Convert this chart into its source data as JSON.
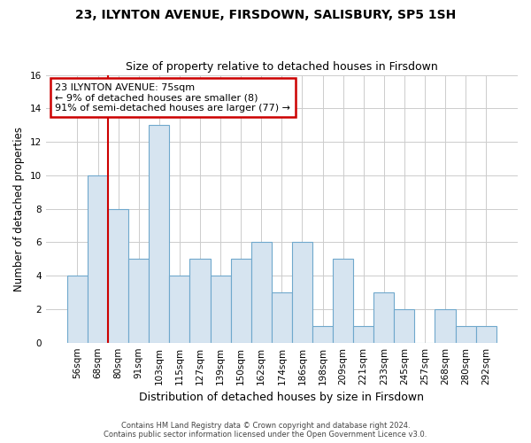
{
  "title": "23, ILYNTON AVENUE, FIRSDOWN, SALISBURY, SP5 1SH",
  "subtitle": "Size of property relative to detached houses in Firsdown",
  "xlabel": "Distribution of detached houses by size in Firsdown",
  "ylabel": "Number of detached properties",
  "categories": [
    "56sqm",
    "68sqm",
    "80sqm",
    "91sqm",
    "103sqm",
    "115sqm",
    "127sqm",
    "139sqm",
    "150sqm",
    "162sqm",
    "174sqm",
    "186sqm",
    "198sqm",
    "209sqm",
    "221sqm",
    "233sqm",
    "245sqm",
    "257sqm",
    "268sqm",
    "280sqm",
    "292sqm"
  ],
  "values": [
    4,
    10,
    8,
    5,
    13,
    4,
    5,
    4,
    5,
    6,
    3,
    6,
    1,
    5,
    1,
    3,
    2,
    0,
    2,
    1,
    1
  ],
  "bar_color": "#d6e4f0",
  "bar_edge_color": "#6fa8cc",
  "grid_color": "#cccccc",
  "annotation_text": "23 ILYNTON AVENUE: 75sqm\n← 9% of detached houses are smaller (8)\n91% of semi-detached houses are larger (77) →",
  "annotation_box_color": "#ffffff",
  "annotation_box_edge": "#cc0000",
  "vline_color": "#cc0000",
  "vline_x_index": 2,
  "ylim": [
    0,
    16
  ],
  "yticks": [
    0,
    2,
    4,
    6,
    8,
    10,
    12,
    14,
    16
  ],
  "footnote": "Contains HM Land Registry data © Crown copyright and database right 2024.\nContains public sector information licensed under the Open Government Licence v3.0.",
  "bg_color": "#ffffff",
  "title_fontsize": 10,
  "subtitle_fontsize": 9,
  "xlabel_fontsize": 9,
  "ylabel_fontsize": 8.5,
  "tick_fontsize": 7.5,
  "footnote_fontsize": 6,
  "annot_fontsize": 8
}
